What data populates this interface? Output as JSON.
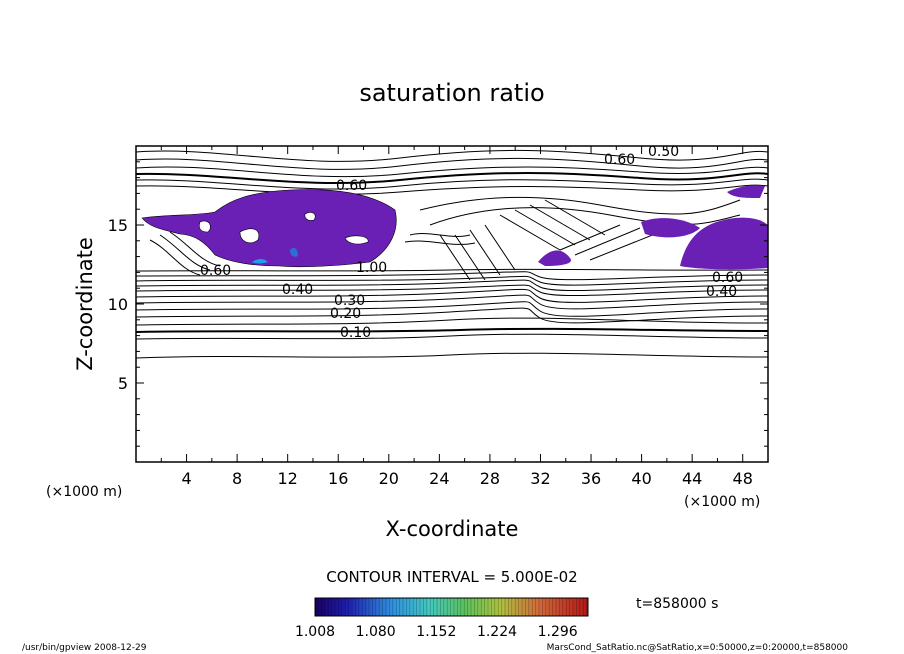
{
  "chart_data": {
    "type": "contour",
    "title": "saturation ratio",
    "xlabel": "X-coordinate",
    "ylabel": "Z-coordinate",
    "x_unit_left": "(×1000 m)",
    "x_unit_right": "(×1000 m)",
    "xlim": [
      0,
      50
    ],
    "ylim": [
      0,
      20
    ],
    "x_ticks": [
      "4",
      "8",
      "12",
      "16",
      "20",
      "24",
      "28",
      "32",
      "36",
      "40",
      "44",
      "48"
    ],
    "y_ticks": [
      "5",
      "10",
      "15"
    ],
    "contour_labels": [
      "0.60",
      "0.50",
      "0.60",
      "0.60",
      "1.00",
      "0.40",
      "0.30",
      "0.20",
      "0.10",
      "0.60",
      "0.40"
    ],
    "contour_interval_text": "CONTOUR INTERVAL = 5.000E-02",
    "colorbar": {
      "range": [
        1.008,
        1.332
      ],
      "tick_labels": [
        "1.008",
        "1.080",
        "1.152",
        "1.224",
        "1.296"
      ]
    },
    "time_label": "t=858000 s",
    "fill_color": "#6a1fb5"
  },
  "footer": {
    "left": "/usr/bin/gpview   2008-12-29",
    "right": "MarsCond_SatRatio.nc@SatRatio,x=0:50000,z=0:20000,t=858000"
  }
}
